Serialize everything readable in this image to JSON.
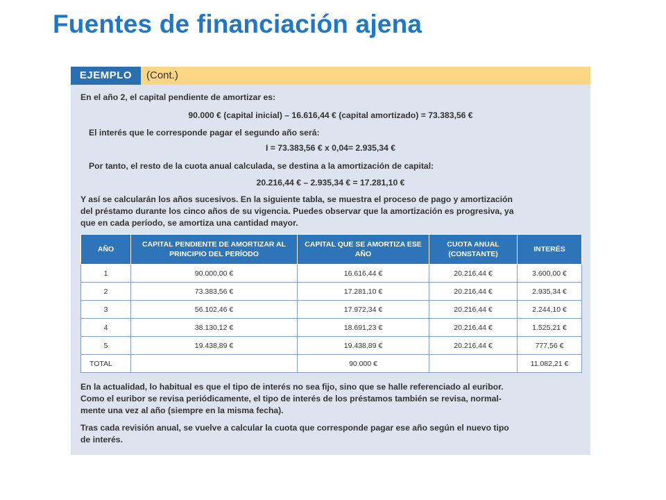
{
  "slide": {
    "title": "Fuentes de financiación ajena"
  },
  "example": {
    "tag": "EJEMPLO",
    "cont": "(Cont.)",
    "lines": [
      "En el año 2, el capital pendiente de amortizar es:",
      "90.000 € (capital inicial) – 16.616,44 € (capital amortizado) = 73.383,56 €",
      "El interés que le corresponde pagar el segundo año será:",
      "I = 73.383,56 € x 0,04= 2.935,34 €",
      "Por tanto, el resto de la cuota anual calculada, se destina a la amortización de capital:",
      "20.216,44 € – 2.935,34 € = 17.281,10 €",
      "Y así se calcularán los años sucesivos. En la siguiente tabla, se muestra el proceso de pago y amortización",
      "del préstamo durante los cinco años de su vigencia. Puedes observar que la amortización es progresiva, ya",
      "que en cada período, se amortiza una cantidad mayor."
    ],
    "table": {
      "headers": [
        "AÑO",
        "CAPITAL PENDIENTE DE AMORTIZAR AL PRINCIPIO DEL PERÍODO",
        "CAPITAL QUE SE AMORTIZA ESE AÑO",
        "CUOTA ANUAL (CONSTANTE)",
        "INTERÉS"
      ],
      "rows": [
        [
          "1",
          "90.000,00 €",
          "16.616,44 €",
          "20.216,44 €",
          "3.600,00 €"
        ],
        [
          "2",
          "73.383,56 €",
          "17.281,10 €",
          "20.216,44 €",
          "2.935,34 €"
        ],
        [
          "3",
          "56.102,46 €",
          "17.972,34 €",
          "20.216,44 €",
          "2.244,10 €"
        ],
        [
          "4",
          "38.130,12 €",
          "18.691,23 €",
          "20.216,44 €",
          "1.525,21 €"
        ],
        [
          "5",
          "19.438,89 €",
          "19.438,89 €",
          "20.216,44 €",
          "777,56 €"
        ]
      ],
      "total": [
        "TOTAL",
        "",
        "90.000 €",
        "",
        "11.082,21 €"
      ]
    },
    "footer_lines": [
      "En la actualidad, lo habitual es que el tipo de interés no sea fijo, sino que se halle referenciado al euribor.",
      "Como el euribor se revisa periódicamente, el tipo de interés de los préstamos también se revisa, normal-",
      "mente una vez al año (siempre en la misma fecha).",
      "Tras cada revisión anual, se vuelve a calcular la cuota que corresponde pagar ese año según el nuevo tipo",
      "de interés."
    ],
    "colors": {
      "title": "#1f77c8",
      "card_bg": "#dde4ef",
      "header_band": "#fbd685",
      "tag_bg": "#2a6fb0",
      "table_header": "#2e74b9"
    }
  }
}
